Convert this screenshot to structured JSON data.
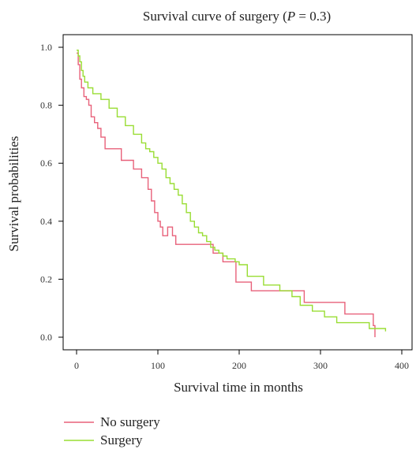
{
  "chart_data": {
    "type": "line",
    "title_prefix": "Survival curve of surgery (",
    "title_p": "P",
    "title_suffix": " = 0.3)",
    "xlabel": "Survival time in months",
    "ylabel": "Survival probabilities",
    "xlim": [
      0,
      400
    ],
    "ylim": [
      0.0,
      1.0
    ],
    "x_ticks": [
      0,
      100,
      200,
      300,
      400
    ],
    "y_ticks": [
      0.0,
      0.2,
      0.4,
      0.6,
      0.8,
      1.0
    ],
    "x_tick_labels": [
      "0",
      "100",
      "200",
      "300",
      "400"
    ],
    "y_tick_labels": [
      "0.0",
      "0.2",
      "0.4",
      "0.6",
      "0.8",
      "1.0"
    ],
    "grid": false,
    "legend_position": "bottom-left",
    "series": [
      {
        "name": "No surgery",
        "color": "#e8617a",
        "step": true,
        "x": [
          0,
          2,
          4,
          6,
          9,
          12,
          15,
          18,
          22,
          26,
          30,
          35,
          40,
          55,
          70,
          80,
          88,
          92,
          96,
          100,
          103,
          106,
          112,
          118,
          122,
          125,
          168,
          180,
          196,
          215,
          255,
          280,
          330,
          365,
          367
        ],
        "y": [
          0.98,
          0.94,
          0.89,
          0.86,
          0.83,
          0.82,
          0.8,
          0.76,
          0.74,
          0.72,
          0.69,
          0.65,
          0.65,
          0.61,
          0.58,
          0.55,
          0.51,
          0.47,
          0.43,
          0.4,
          0.38,
          0.35,
          0.38,
          0.35,
          0.32,
          0.32,
          0.29,
          0.26,
          0.19,
          0.16,
          0.16,
          0.12,
          0.08,
          0.04,
          0.0
        ]
      },
      {
        "name": "Surgery",
        "color": "#99dd33",
        "step": true,
        "x": [
          0,
          2,
          4,
          6,
          8,
          10,
          14,
          20,
          30,
          40,
          50,
          60,
          70,
          80,
          85,
          90,
          95,
          100,
          105,
          110,
          115,
          120,
          125,
          130,
          135,
          140,
          145,
          150,
          155,
          160,
          165,
          170,
          175,
          180,
          185,
          190,
          195,
          200,
          210,
          230,
          250,
          265,
          275,
          290,
          305,
          320,
          360,
          380
        ],
        "y": [
          0.99,
          0.97,
          0.95,
          0.92,
          0.9,
          0.88,
          0.86,
          0.84,
          0.82,
          0.79,
          0.76,
          0.73,
          0.7,
          0.67,
          0.65,
          0.64,
          0.62,
          0.6,
          0.58,
          0.55,
          0.53,
          0.51,
          0.49,
          0.46,
          0.43,
          0.4,
          0.38,
          0.36,
          0.35,
          0.33,
          0.31,
          0.3,
          0.29,
          0.28,
          0.27,
          0.27,
          0.26,
          0.25,
          0.21,
          0.18,
          0.16,
          0.14,
          0.11,
          0.09,
          0.07,
          0.05,
          0.03,
          0.02
        ]
      }
    ]
  }
}
